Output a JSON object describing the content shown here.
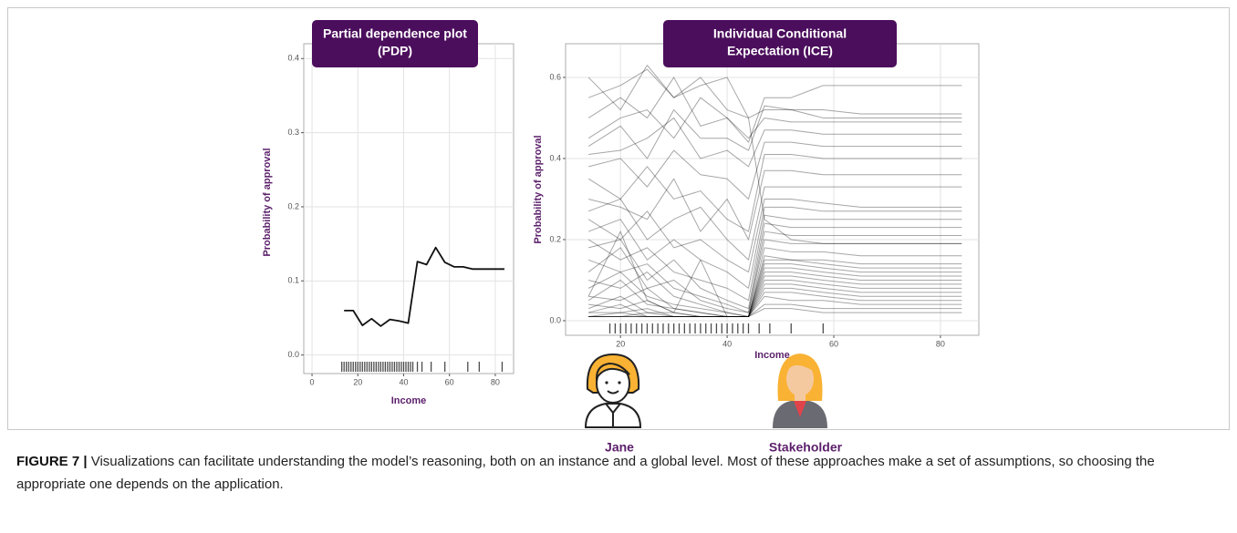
{
  "chart_data": [
    {
      "type": "line",
      "title": [
        "Partial dependence plot",
        "(PDP)"
      ],
      "x_label": "Income",
      "y_label": "Probability of approval",
      "x": [
        14,
        18,
        22,
        26,
        30,
        34,
        38,
        42,
        46,
        50,
        54,
        58,
        62,
        66,
        70,
        75,
        84
      ],
      "series": [
        {
          "color": "#111111",
          "values": [
            0.06,
            0.06,
            0.04,
            0.049,
            0.039,
            0.048,
            0.046,
            0.043,
            0.126,
            0.122,
            0.145,
            0.125,
            0.119,
            0.119,
            0.116,
            0.116,
            0.116
          ]
        }
      ],
      "rug": [
        13,
        14,
        15,
        16,
        17,
        18,
        19,
        20,
        21,
        22,
        23,
        24,
        25,
        26,
        27,
        28,
        29,
        30,
        31,
        32,
        33,
        34,
        35,
        36,
        37,
        38,
        39,
        40,
        41,
        42,
        43,
        44,
        46,
        48,
        52,
        58,
        68,
        73,
        83
      ],
      "xlim": [
        -3.6,
        88
      ],
      "ylim": [
        -0.025,
        0.42
      ],
      "xticks": [
        0,
        20,
        40,
        60,
        80
      ],
      "yticks": [
        {
          "value": 0,
          "label": "0.0"
        },
        0.1,
        0.2,
        0.3,
        0.4
      ],
      "grid": true
    },
    {
      "type": "line",
      "title": [
        "Individual Conditional",
        "Expectation (ICE)"
      ],
      "x_label": "Income",
      "y_label": "Probability of approval",
      "x": [
        14,
        20,
        25,
        30,
        35,
        40,
        44,
        47,
        52,
        58,
        65,
        84
      ],
      "color": "#000000",
      "series": [
        {
          "values": [
            0.55,
            0.58,
            0.62,
            0.55,
            0.6,
            0.52,
            0.5,
            0.52,
            0.52,
            0.5,
            0.5,
            0.5
          ]
        },
        {
          "values": [
            0.5,
            0.55,
            0.5,
            0.6,
            0.48,
            0.5,
            0.44,
            0.55,
            0.55,
            0.58,
            0.58,
            0.58
          ]
        },
        {
          "values": [
            0.45,
            0.5,
            0.52,
            0.45,
            0.55,
            0.5,
            0.45,
            0.5,
            0.49,
            0.49,
            0.49,
            0.49
          ]
        },
        {
          "values": [
            0.41,
            0.42,
            0.45,
            0.5,
            0.4,
            0.42,
            0.38,
            0.47,
            0.47,
            0.46,
            0.46,
            0.46
          ]
        },
        {
          "values": [
            0.38,
            0.4,
            0.33,
            0.42,
            0.36,
            0.35,
            0.3,
            0.44,
            0.44,
            0.43,
            0.43,
            0.43
          ]
        },
        {
          "values": [
            0.35,
            0.3,
            0.38,
            0.3,
            0.32,
            0.25,
            0.22,
            0.41,
            0.41,
            0.4,
            0.4,
            0.4
          ]
        },
        {
          "values": [
            0.3,
            0.28,
            0.25,
            0.35,
            0.22,
            0.3,
            0.2,
            0.37,
            0.37,
            0.36,
            0.36,
            0.36
          ]
        },
        {
          "values": [
            0.27,
            0.3,
            0.2,
            0.25,
            0.28,
            0.2,
            0.15,
            0.33,
            0.33,
            0.33,
            0.33,
            0.33
          ]
        },
        {
          "values": [
            0.25,
            0.2,
            0.27,
            0.18,
            0.2,
            0.15,
            0.12,
            0.3,
            0.3,
            0.29,
            0.28,
            0.28
          ]
        },
        {
          "values": [
            0.22,
            0.25,
            0.15,
            0.2,
            0.15,
            0.12,
            0.08,
            0.28,
            0.28,
            0.27,
            0.27,
            0.27
          ]
        },
        {
          "values": [
            0.2,
            0.15,
            0.18,
            0.12,
            0.1,
            0.08,
            0.05,
            0.26,
            0.25,
            0.25,
            0.25,
            0.25
          ]
        },
        {
          "values": [
            0.18,
            0.2,
            0.1,
            0.15,
            0.08,
            0.05,
            0.03,
            0.24,
            0.23,
            0.23,
            0.23,
            0.23
          ]
        },
        {
          "values": [
            0.15,
            0.12,
            0.14,
            0.08,
            0.06,
            0.04,
            0.02,
            0.22,
            0.21,
            0.21,
            0.21,
            0.21
          ]
        },
        {
          "values": [
            0.12,
            0.18,
            0.08,
            0.1,
            0.05,
            0.03,
            0.02,
            0.2,
            0.19,
            0.19,
            0.19,
            0.19
          ]
        },
        {
          "values": [
            0.1,
            0.08,
            0.12,
            0.06,
            0.04,
            0.02,
            0.01,
            0.18,
            0.17,
            0.17,
            0.16,
            0.16
          ]
        },
        {
          "values": [
            0.08,
            0.12,
            0.06,
            0.04,
            0.03,
            0.02,
            0.01,
            0.16,
            0.15,
            0.15,
            0.14,
            0.14
          ]
        },
        {
          "values": [
            0.06,
            0.05,
            0.08,
            0.03,
            0.02,
            0.01,
            0.01,
            0.14,
            0.14,
            0.13,
            0.12,
            0.12
          ]
        },
        {
          "values": [
            0.05,
            0.1,
            0.04,
            0.03,
            0.02,
            0.01,
            0.01,
            0.13,
            0.13,
            0.12,
            0.11,
            0.11
          ]
        },
        {
          "values": [
            0.04,
            0.03,
            0.05,
            0.02,
            0.01,
            0.01,
            0.01,
            0.12,
            0.12,
            0.11,
            0.1,
            0.1
          ]
        },
        {
          "values": [
            0.03,
            0.06,
            0.02,
            0.02,
            0.01,
            0.01,
            0.01,
            0.11,
            0.11,
            0.1,
            0.09,
            0.09
          ]
        },
        {
          "values": [
            0.02,
            0.02,
            0.03,
            0.01,
            0.01,
            0.01,
            0.01,
            0.1,
            0.1,
            0.09,
            0.08,
            0.08
          ]
        },
        {
          "values": [
            0.02,
            0.04,
            0.01,
            0.01,
            0.01,
            0.01,
            0.01,
            0.09,
            0.09,
            0.08,
            0.07,
            0.07
          ]
        },
        {
          "values": [
            0.01,
            0.01,
            0.02,
            0.01,
            0.01,
            0.01,
            0.01,
            0.08,
            0.08,
            0.07,
            0.06,
            0.06
          ]
        },
        {
          "values": [
            0.01,
            0.02,
            0.01,
            0.01,
            0.01,
            0.01,
            0.01,
            0.07,
            0.07,
            0.06,
            0.05,
            0.05
          ]
        },
        {
          "values": [
            0.01,
            0.01,
            0.01,
            0.01,
            0.01,
            0.01,
            0.01,
            0.06,
            0.05,
            0.05,
            0.04,
            0.04
          ]
        },
        {
          "values": [
            0.01,
            0.01,
            0.01,
            0.01,
            0.01,
            0.01,
            0.01,
            0.04,
            0.04,
            0.03,
            0.03,
            0.03
          ]
        },
        {
          "values": [
            0.01,
            0.01,
            0.01,
            0.01,
            0.01,
            0.01,
            0.01,
            0.03,
            0.03,
            0.02,
            0.02,
            0.02
          ]
        },
        {
          "values": [
            0.06,
            0.22,
            0.05,
            0.02,
            0.15,
            0.01,
            0.01,
            0.15,
            0.15,
            0.14,
            0.13,
            0.13
          ]
        },
        {
          "values": [
            0.6,
            0.52,
            0.63,
            0.55,
            0.58,
            0.6,
            0.5,
            0.25,
            0.2,
            0.19,
            0.19,
            0.19
          ]
        },
        {
          "values": [
            0.43,
            0.48,
            0.4,
            0.52,
            0.45,
            0.45,
            0.42,
            0.53,
            0.52,
            0.52,
            0.51,
            0.51
          ]
        }
      ],
      "rug": [
        18,
        19,
        20,
        21,
        22,
        23,
        24,
        25,
        26,
        27,
        28,
        29,
        30,
        31,
        32,
        33,
        34,
        35,
        36,
        37,
        38,
        39,
        40,
        41,
        42,
        43,
        44,
        46,
        48,
        52,
        58
      ],
      "xlim": [
        9.7,
        87.2
      ],
      "ylim": [
        -0.036,
        0.683
      ],
      "xticks": [
        20,
        40,
        60,
        80
      ],
      "yticks": [
        {
          "value": 0,
          "label": "0.0"
        },
        0.2,
        0.4,
        0.6
      ],
      "grid": true
    }
  ],
  "personas": [
    "Jane",
    "Stakeholder"
  ],
  "caption": {
    "label": "FIGURE 7 |",
    "text": "Visualizations can facilitate understanding the model’s reasoning, both on an instance and a global level. Most of these approaches make a set of assumptions, so choosing the appropriate one depends on the application."
  }
}
